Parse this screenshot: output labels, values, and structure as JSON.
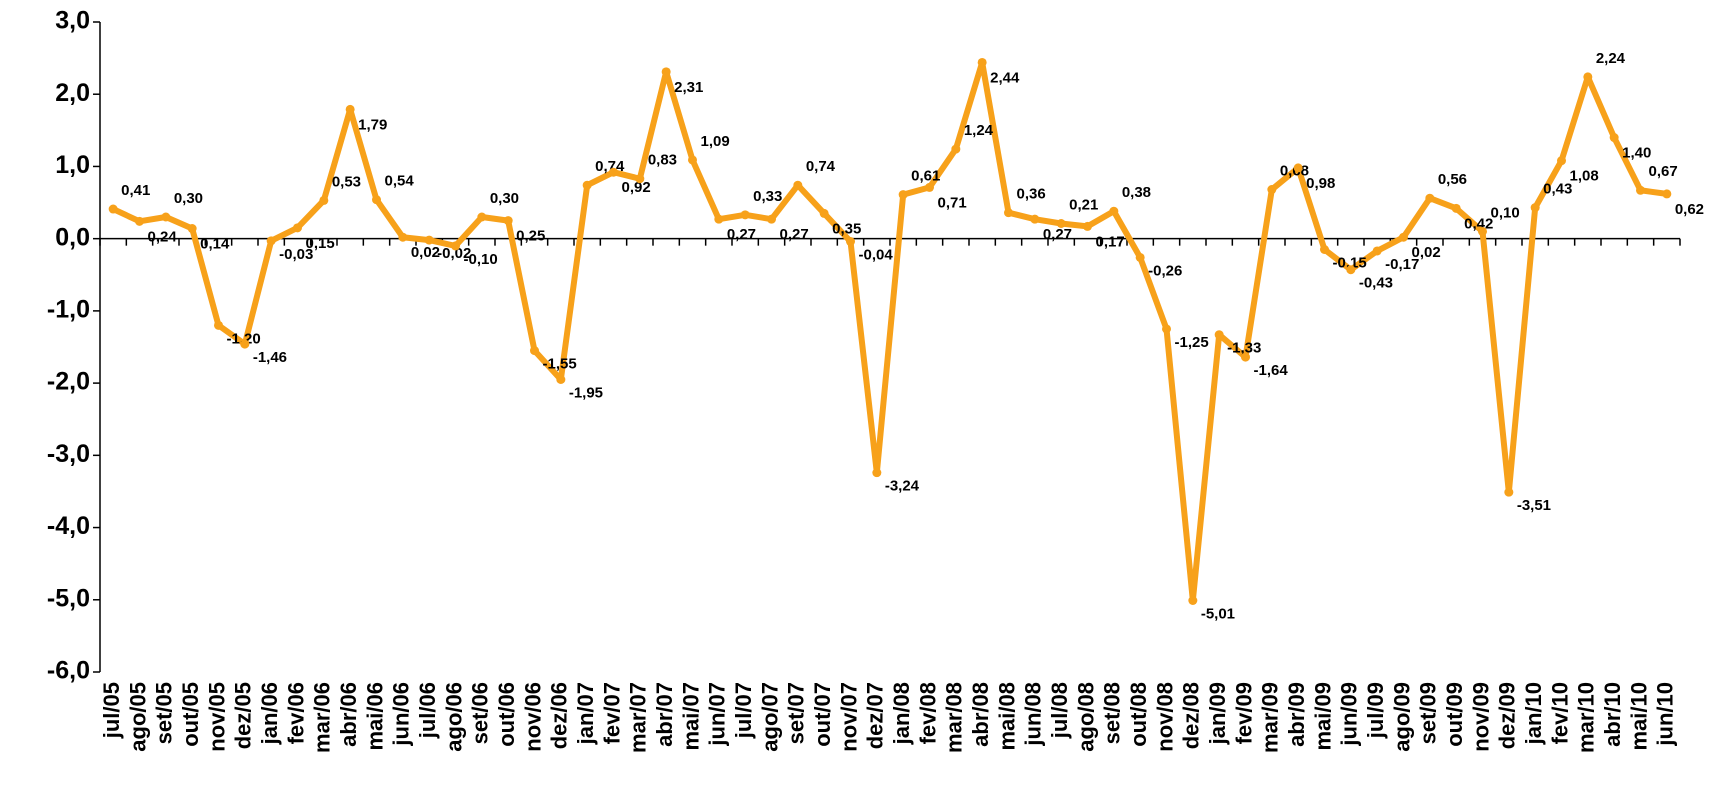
{
  "chart_data": {
    "type": "line",
    "categories": [
      "jul/05",
      "ago/05",
      "set/05",
      "out/05",
      "nov/05",
      "dez/05",
      "jan/06",
      "fev/06",
      "mar/06",
      "abr/06",
      "mai/06",
      "jun/06",
      "jul/06",
      "ago/06",
      "set/06",
      "out/06",
      "nov/06",
      "dez/06",
      "jan/07",
      "fev/07",
      "mar/07",
      "abr/07",
      "mai/07",
      "jun/07",
      "jul/07",
      "ago/07",
      "set/07",
      "out/07",
      "nov/07",
      "dez/07",
      "jan/08",
      "fev/08",
      "mar/08",
      "abr/08",
      "mai/08",
      "jun/08",
      "jul/08",
      "ago/08",
      "set/08",
      "out/08",
      "nov/08",
      "dez/08",
      "jan/09",
      "fev/09",
      "mar/09",
      "abr/09",
      "mai/09",
      "jun/09",
      "jul/09",
      "ago/09",
      "set/09",
      "out/09",
      "nov/09",
      "dez/09",
      "jan/10",
      "fev/10",
      "mar/10",
      "abr/10",
      "mai/10",
      "jun/10"
    ],
    "values": [
      0.41,
      0.24,
      0.3,
      0.14,
      -1.2,
      -1.46,
      -0.03,
      0.15,
      0.53,
      1.79,
      0.54,
      0.02,
      -0.02,
      -0.1,
      0.3,
      0.25,
      -1.55,
      -1.95,
      0.74,
      0.92,
      0.83,
      2.31,
      1.09,
      0.27,
      0.33,
      0.27,
      0.74,
      0.35,
      -0.04,
      -3.24,
      0.61,
      0.71,
      1.24,
      2.44,
      0.36,
      0.27,
      0.21,
      0.17,
      0.38,
      -0.26,
      -1.25,
      -5.01,
      -1.33,
      -1.64,
      0.68,
      0.98,
      -0.15,
      -0.43,
      -0.17,
      0.02,
      0.56,
      0.42,
      0.1,
      -3.51,
      0.43,
      1.08,
      2.24,
      1.4,
      0.67,
      0.62
    ],
    "value_labels": [
      "0,41",
      "0,24",
      "0,30",
      "0,14",
      "-1,20",
      "-1,46",
      "-0,03",
      "0,15",
      "0,53",
      "1,79",
      "0,54",
      "0,02",
      "-0,02",
      "-0,10",
      "0,30",
      "0,25",
      "-1,55",
      "-1,95",
      "0,74",
      "0,92",
      "0,83",
      "2,31",
      "1,09",
      "0,27",
      "0,33",
      "0,27",
      "0,74",
      "0,35",
      "-0,04",
      "-3,24",
      "0,61",
      "0,71",
      "1,24",
      "2,44",
      "0,36",
      "0,27",
      "0,21",
      "0,17",
      "0,38",
      "-0,26",
      "-1,25",
      "-5,01",
      "-1,33",
      "-1,64",
      "0,68",
      "0,98",
      "-0,15",
      "-0,43",
      "-0,17",
      "0,02",
      "0,56",
      "0,42",
      "0,10",
      "-3,51",
      "0,43",
      "1,08",
      "2,24",
      "1,40",
      "0,67",
      "0,62"
    ],
    "color": "#f7a11a",
    "ylim": [
      -6,
      3
    ],
    "yticks": [
      {
        "value": -6,
        "label": "-6,0"
      },
      {
        "value": -5,
        "label": "-5,0"
      },
      {
        "value": -4,
        "label": "-4,0"
      },
      {
        "value": -3,
        "label": "-3,0"
      },
      {
        "value": -2,
        "label": "-2,0"
      },
      {
        "value": -1,
        "label": "-1,0"
      },
      {
        "value": 0,
        "label": "0,0"
      },
      {
        "value": 1,
        "label": "1,0"
      },
      {
        "value": 2,
        "label": "2,0"
      },
      {
        "value": 3,
        "label": "3,0"
      }
    ]
  }
}
